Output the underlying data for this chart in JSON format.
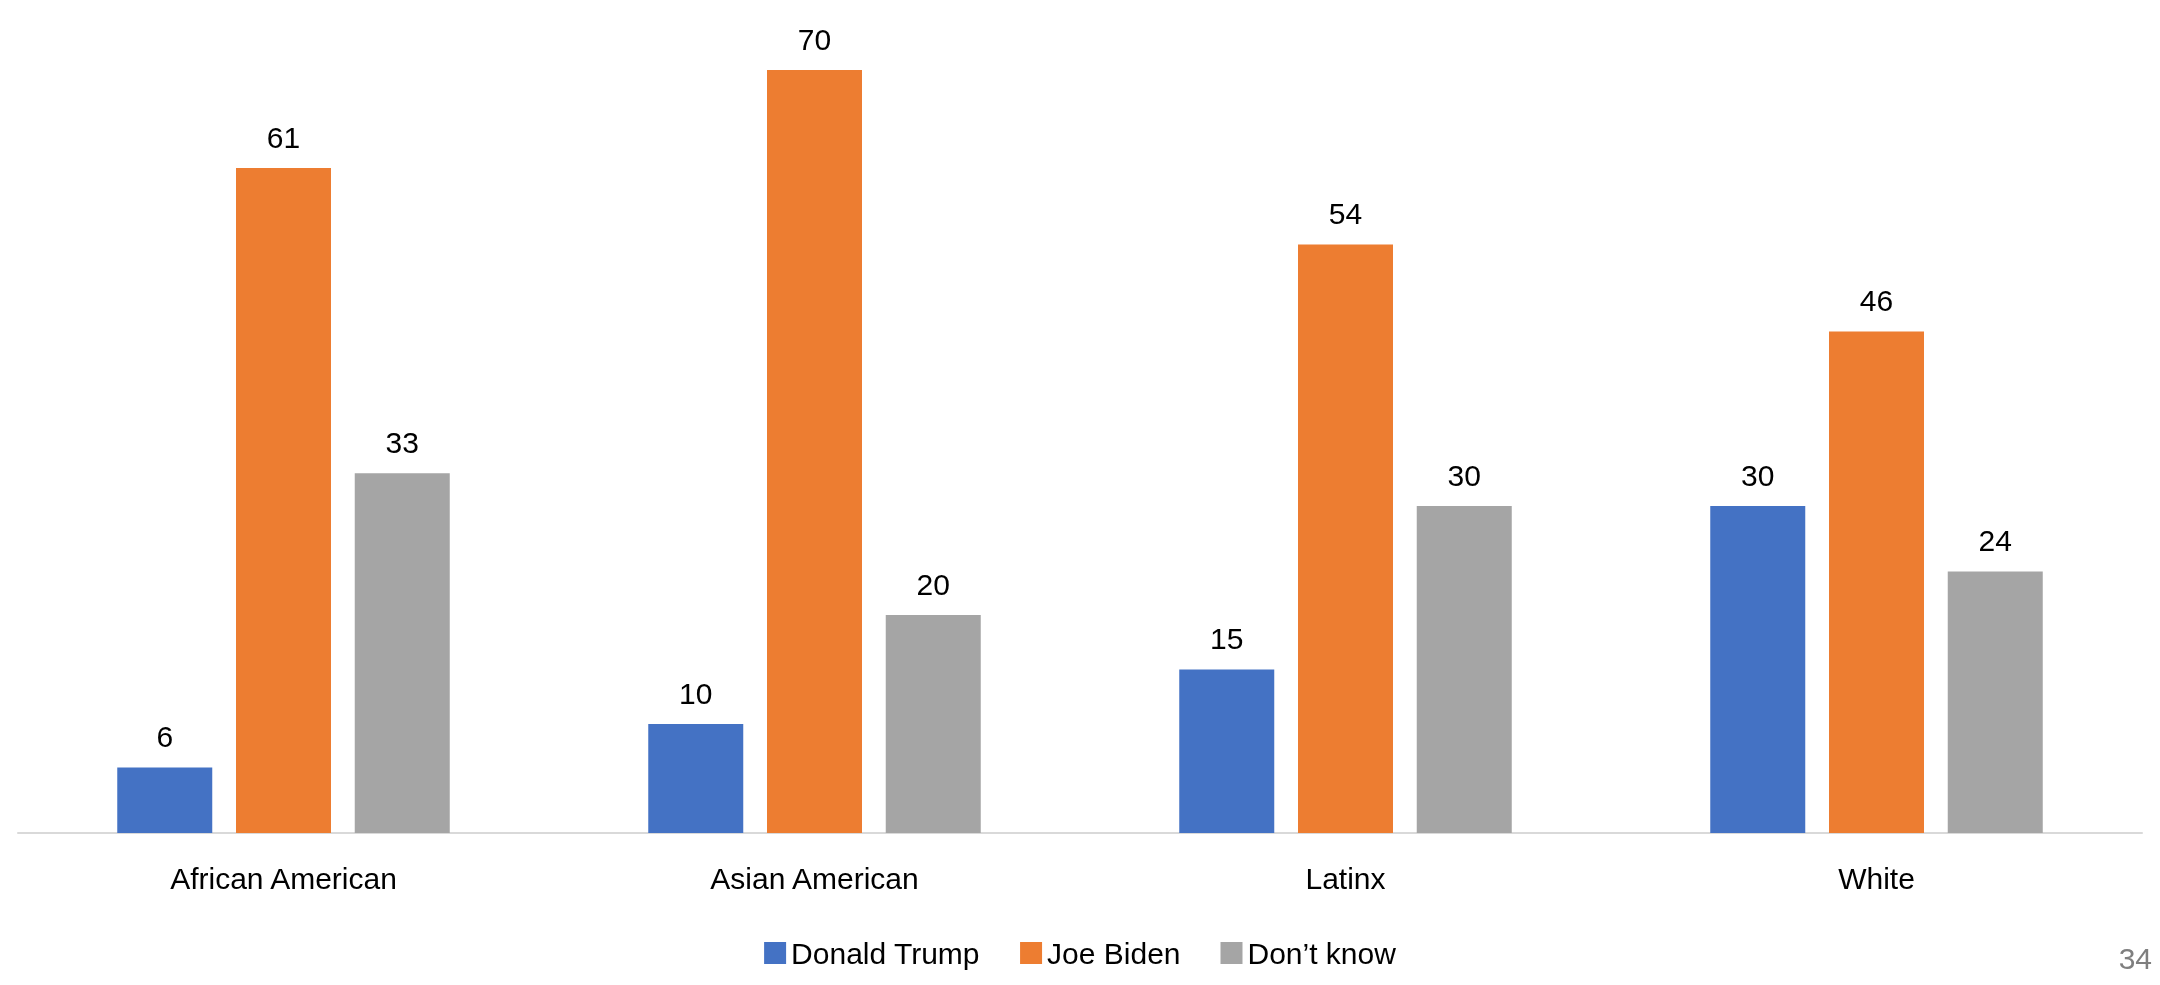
{
  "chart_data": {
    "type": "bar",
    "categories": [
      "African American",
      "Asian American",
      "Latinx",
      "White"
    ],
    "series": [
      {
        "name": "Donald Trump",
        "color": "#4472c4",
        "values": [
          6,
          10,
          15,
          30
        ]
      },
      {
        "name": "Joe Biden",
        "color": "#ed7d31",
        "values": [
          61,
          70,
          54,
          46
        ]
      },
      {
        "name": "Don’t know",
        "color": "#a5a5a5",
        "values": [
          33,
          20,
          30,
          24
        ]
      }
    ],
    "data_labels": true,
    "legend": "bottom",
    "annotations": [
      "34"
    ]
  }
}
